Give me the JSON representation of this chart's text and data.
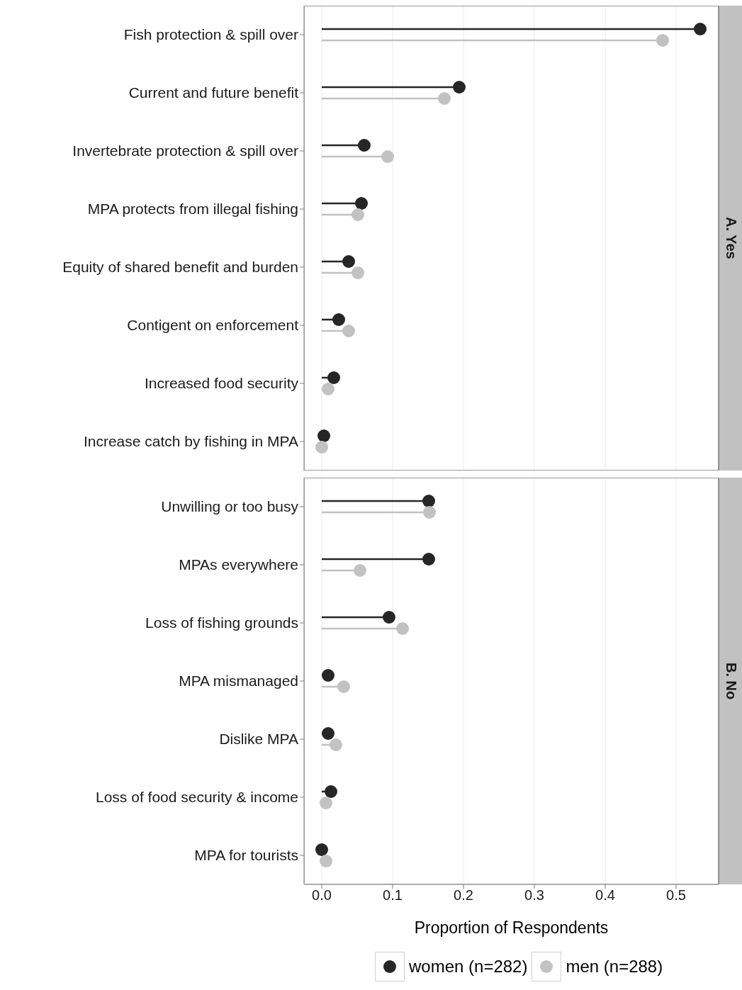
{
  "chart_data": [
    {
      "type": "lollipop",
      "title": "A. Yes",
      "orientation": "horizontal",
      "categories": [
        "Fish protection & spill over",
        "Current and future benefit",
        "Invertebrate protection & spill over",
        "MPA protects from illegal fishing",
        "Equity of shared benefit and burden",
        "Contigent on enforcement",
        "Increased food security",
        "Increase catch by fishing in MPA"
      ],
      "series": [
        {
          "color": "#262626",
          "values": [
            0.534,
            0.194,
            0.06,
            0.056,
            0.038,
            0.024,
            0.017,
            0.003
          ]
        },
        {
          "color": "#c2c2c2",
          "values": [
            0.481,
            0.173,
            0.093,
            0.051,
            0.051,
            0.038,
            0.009,
            0.0
          ]
        }
      ],
      "xlim": [
        -0.025,
        0.56
      ],
      "xticks": [
        0.0,
        0.1,
        0.2,
        0.3,
        0.4,
        0.5
      ],
      "tick_labels": "y",
      "grid": "x",
      "marker": "circle"
    },
    {
      "type": "lollipop",
      "title": "B. No",
      "orientation": "horizontal",
      "categories": [
        "Unwilling or too busy",
        "MPAs everywhere",
        "Loss of fishing grounds",
        "MPA mismanaged",
        "Dislike MPA",
        "Loss of food security & income",
        "MPA for tourists"
      ],
      "series": [
        {
          "name": "women (n=282)",
          "color": "#262626",
          "values": [
            0.151,
            0.151,
            0.095,
            0.009,
            0.009,
            0.013,
            0.0
          ]
        },
        {
          "name": "men (n=288)",
          "color": "#c2c2c2",
          "values": [
            0.152,
            0.054,
            0.114,
            0.031,
            0.02,
            0.006,
            0.006
          ]
        }
      ],
      "xlim": [
        -0.025,
        0.56
      ],
      "xticks": [
        {
          "value": 0.0,
          "label": "0.0"
        },
        0.1,
        0.2,
        0.3,
        0.4,
        0.5
      ],
      "xlabel": "Proportion of Respondents",
      "grid": "x",
      "marker": "circle",
      "legend": "bottom"
    }
  ]
}
